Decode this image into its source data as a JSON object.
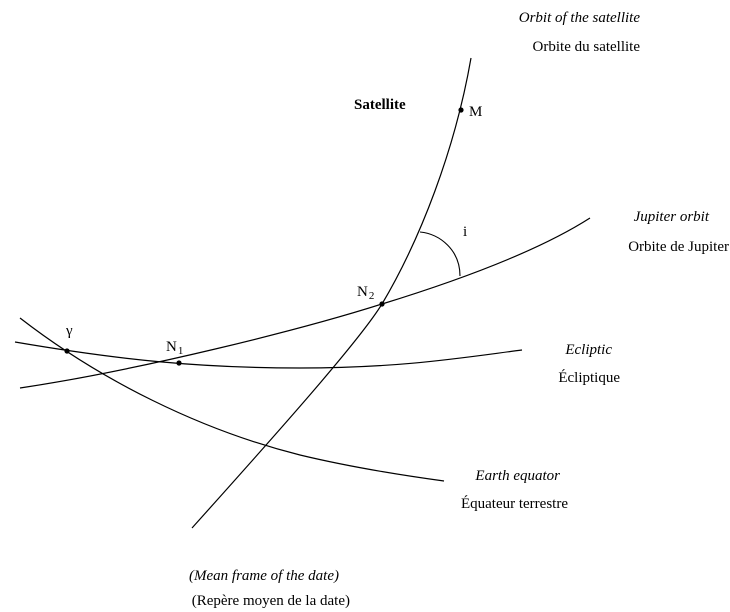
{
  "labels": {
    "orbit_satellite_en": "Orbit of the satellite",
    "orbit_satellite_fr": "Orbite du satellite",
    "satellite": "Satellite",
    "point_m": "M",
    "angle_i": "i",
    "jupiter_orbit_en": "Jupiter orbit",
    "jupiter_orbit_fr": "Orbite de Jupiter",
    "node_n2": "N",
    "node_n2_sub": "2",
    "node_n1": "N",
    "node_n1_sub": "1",
    "gamma": "γ",
    "ecliptic_en": "Ecliptic",
    "ecliptic_fr": "Écliptique",
    "equator_en": "Earth equator",
    "equator_fr": "Équateur terrestre",
    "frame_en": "(Mean frame of the date)",
    "frame_fr": "(Repère moyen de la date)"
  }
}
